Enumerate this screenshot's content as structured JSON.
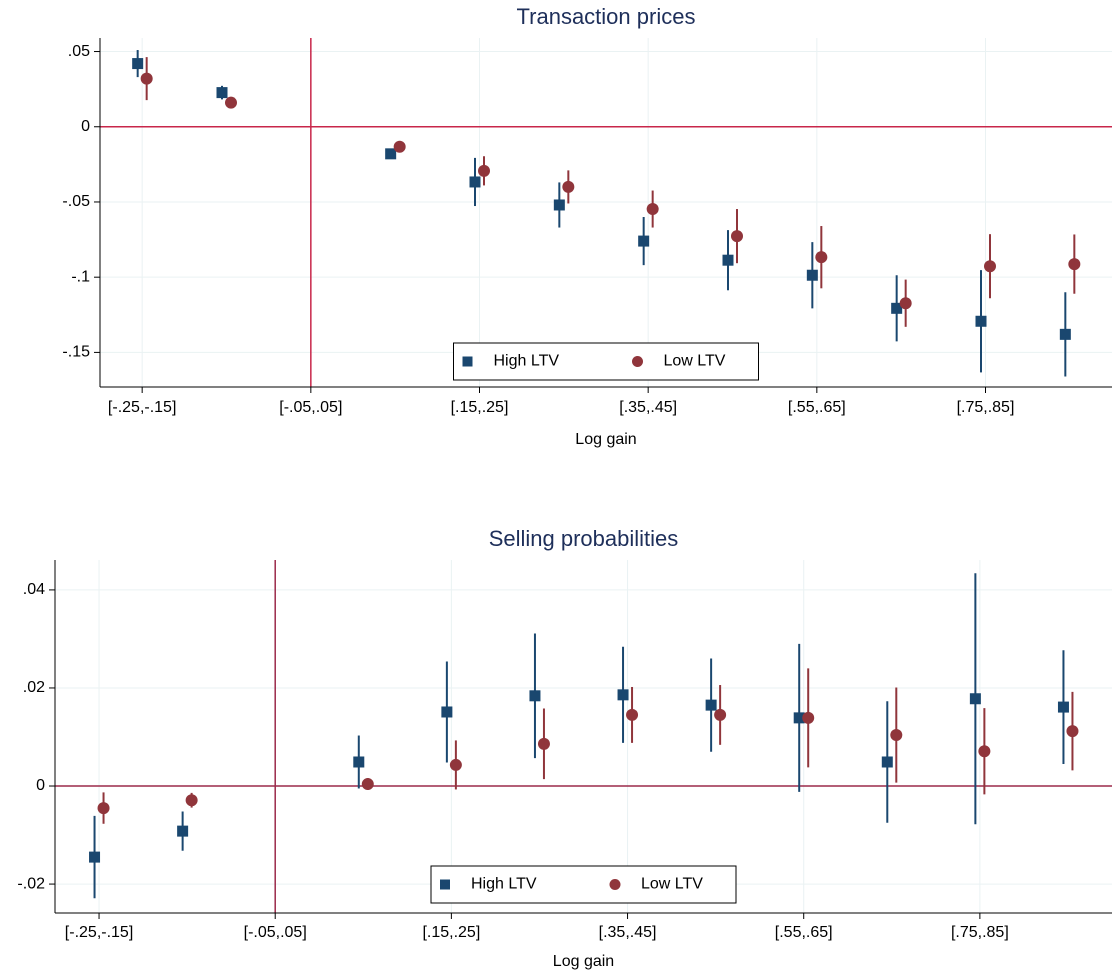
{
  "chart_data": [
    {
      "type": "scatter",
      "title": "Transaction prices",
      "x_label": "Log gain",
      "x": [
        -0.2,
        -0.1,
        0.1,
        0.2,
        0.3,
        0.4,
        0.5,
        0.6,
        0.7,
        0.8,
        0.9
      ],
      "xlim": [
        -0.25,
        0.95
      ],
      "xticks": [
        {
          "value": -0.2,
          "label": "[-.25,-.15]"
        },
        {
          "value": 0,
          "label": "[-.05,.05]"
        },
        {
          "value": 0.2,
          "label": "[.15,.25]"
        },
        {
          "value": 0.4,
          "label": "[.35,.45]"
        },
        {
          "value": 0.6,
          "label": "[.55,.65]"
        },
        {
          "value": 0.8,
          "label": "[.75,.85]"
        }
      ],
      "ylim": [
        -0.173,
        0.059
      ],
      "yticks": [
        {
          "value": 0.05,
          "label": ".05"
        },
        0,
        {
          "value": -0.05,
          "label": "-.05"
        },
        {
          "value": -0.1,
          "label": "-.1"
        },
        {
          "value": -0.15,
          "label": "-.15"
        }
      ],
      "reference_lines": {
        "x": 0,
        "y": 0,
        "color": "#c8264a"
      },
      "grid": true,
      "legend": "bottom",
      "series": [
        {
          "name": "High LTV",
          "color": "#1a476f",
          "marker": "square",
          "values": [
            0.042,
            0.0227,
            -0.018,
            -0.0367,
            -0.052,
            -0.076,
            -0.0887,
            -0.0987,
            -0.1207,
            -0.1293,
            -0.138
          ],
          "errors": [
            0.009,
            0.0045,
            0.003,
            0.016,
            0.015,
            0.016,
            0.02,
            0.022,
            0.022,
            0.034,
            0.028
          ]
        },
        {
          "name": "Low LTV",
          "color": "#90353b",
          "marker": "circle",
          "values": [
            0.032,
            0.016,
            -0.0133,
            -0.0293,
            -0.04,
            -0.0547,
            -0.0727,
            -0.0867,
            -0.1173,
            -0.0927,
            -0.0913
          ],
          "errors": [
            0.0143,
            0.002,
            0.002,
            0.0097,
            0.011,
            0.0123,
            0.018,
            0.0207,
            0.0157,
            0.0213,
            0.0197
          ]
        }
      ]
    },
    {
      "type": "scatter",
      "title": "Selling probabilities",
      "x_label": "Log gain",
      "x": [
        -0.2,
        -0.1,
        0.1,
        0.2,
        0.3,
        0.4,
        0.5,
        0.6,
        0.7,
        0.8,
        0.9
      ],
      "xlim": [
        -0.25,
        0.95
      ],
      "xticks": [
        {
          "value": -0.2,
          "label": "[-.25,-.15]"
        },
        {
          "value": 0,
          "label": "[-.05,.05]"
        },
        {
          "value": 0.2,
          "label": "[.15,.25]"
        },
        {
          "value": 0.4,
          "label": "[.35,.45]"
        },
        {
          "value": 0.6,
          "label": "[.55,.65]"
        },
        {
          "value": 0.8,
          "label": "[.75,.85]"
        }
      ],
      "ylim": [
        -0.0259,
        0.0461
      ],
      "yticks": [
        {
          "value": 0.04,
          "label": ".04"
        },
        {
          "value": 0.02,
          "label": ".02"
        },
        0,
        {
          "value": -0.02,
          "label": "-.02"
        }
      ],
      "reference_lines": {
        "x": 0,
        "y": 0,
        "color": "#9b2a4a"
      },
      "grid": true,
      "legend": "bottom",
      "series": [
        {
          "name": "High LTV",
          "color": "#1a476f",
          "marker": "square",
          "values": [
            -0.0145,
            -0.0092,
            0.0049,
            0.0151,
            0.0184,
            0.0186,
            0.0165,
            0.0139,
            0.0049,
            0.0178,
            0.0161
          ],
          "errors": [
            0.0084,
            0.004,
            0.0054,
            0.0103,
            0.0127,
            0.0098,
            0.0095,
            0.0151,
            0.0124,
            0.0256,
            0.0116
          ]
        },
        {
          "name": "Low LTV",
          "color": "#90353b",
          "marker": "circle",
          "values": [
            -0.0045,
            -0.0029,
            0.0004,
            0.0043,
            0.0086,
            0.0145,
            0.0145,
            0.0139,
            0.0104,
            0.0071,
            0.0112
          ],
          "errors": [
            0.0032,
            0.0015,
            0.0012,
            0.005,
            0.0072,
            0.0057,
            0.0061,
            0.0101,
            0.0097,
            0.0088,
            0.008
          ]
        }
      ]
    }
  ]
}
